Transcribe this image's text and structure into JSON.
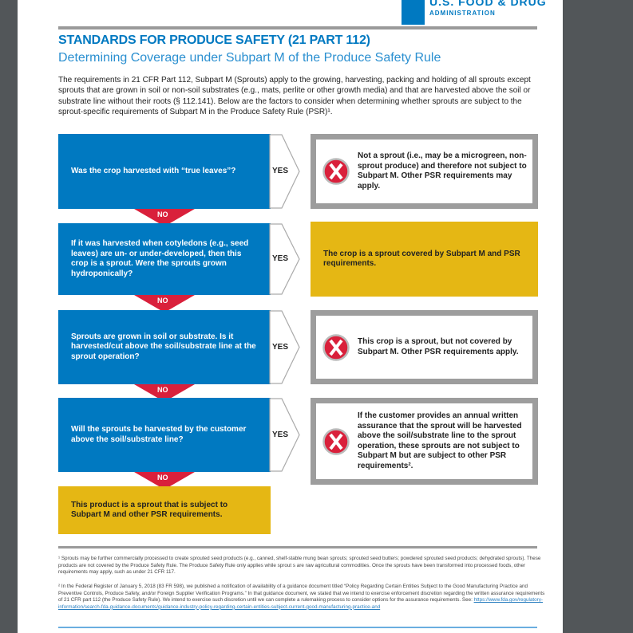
{
  "header": {
    "logo_mark": "FDA",
    "agency_line1": "U.S. FOOD & DRUG",
    "agency_line2": "ADMINISTRATION"
  },
  "title": "STANDARDS FOR PRODUCE SAFETY (21 PART 112)",
  "subtitle": "Determining Coverage under Subpart M of the Produce Safety Rule",
  "intro": "The requirements in 21 CFR Part 112, Subpart M (Sprouts) apply to the growing, harvesting, packing and holding of all sprouts except sprouts that are grown in soil or non-soil substrates (e.g., mats, perlite or other growth media) and that are harvested above the soil or substrate line without their roots (§ 112.141). Below are the factors to consider when determining whether sprouts are subject to the sprout-specific requirements of Subpart M in the Produce Safety Rule (PSR)¹.",
  "flow": {
    "yes_label": "YES",
    "no_label": "NO",
    "steps": [
      {
        "question": "Was the crop harvested with “true leaves”?",
        "result": "Not a sprout (i.e., may be a microgreen, non-sprout produce) and therefore not subject to Subpart M. Other PSR requirements may apply.",
        "result_style": "not-covered"
      },
      {
        "question": "If it was harvested when cotyledons (e.g., seed leaves) are un- or under-developed, then this crop is a sprout. Were the sprouts grown hydroponically?",
        "result": "The crop is a sprout covered by Subpart M and PSR requirements.",
        "result_style": "covered"
      },
      {
        "question": "Sprouts are grown in soil or substrate. Is it harvested/cut above the soil/substrate line at the sprout operation?",
        "result": "This crop is a sprout, but not covered by Subpart M. Other PSR requirements apply.",
        "result_style": "not-covered"
      },
      {
        "question": "Will the sprouts be harvested by the customer above the soil/substrate line?",
        "result": "If the customer provides an annual written assurance that the sprout will be harvested above the soil/substrate line to the sprout operation, these sprouts are not subject to Subpart M but are subject to other PSR requirements².",
        "result_style": "not-covered"
      }
    ],
    "final": "This product is a sprout that is subject to Subpart M and other PSR requirements."
  },
  "footnotes": {
    "fn1": "¹ Sprouts may be further commercially processed to create sprouted seed products (e.g., canned, shelf-stable mung bean sprouts; sprouted seed butters; powdered sprouted seed products; dehydrated sprouts). These products are not covered by the Produce Safety Rule. The Produce Safety Rule only applies while sprout s are raw agricultural commodities. Once the sprouts have been transformed into processed foods, other requirements may apply, such as under 21 CFR 117.",
    "fn2": "² In the Federal Register of January 5, 2018 (83 FR 598), we published a notification of availability of a guidance document titled “Policy Regarding Certain Entities Subject to the Good Manufacturing Practice and Preventive Controls, Produce Safety, and/or Foreign Supplier Verification Programs.” In that guidance document, we stated that we intend to exercise enforcement discretion regarding the written assurance requirements of 21 CFR part 112 (the Produce Safety Rule). We intend to exercise such discretion until we can complete a rulemaking process to consider options for the assurance requirements. See: ",
    "fn2_link": "https://www.fda.gov/regulatory-information/search-fda-guidance-documents/guidance-industry-policy-regarding-certain-entities-subject-current-good-manufacturing-practice-and"
  },
  "colors": {
    "fda_blue": "#0079c1",
    "no_red": "#d9203b",
    "covered_yellow": "#e5b714",
    "border_gray": "#9d9d9d"
  }
}
